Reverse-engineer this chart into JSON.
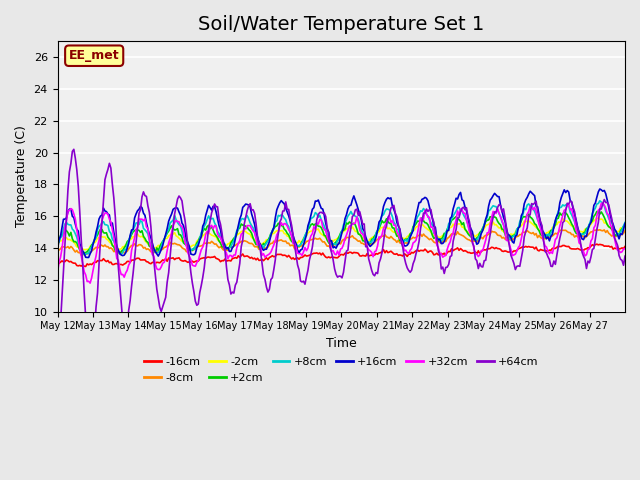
{
  "title": "Soil/Water Temperature Set 1",
  "xlabel": "Time",
  "ylabel": "Temperature (C)",
  "ylim": [
    10,
    27
  ],
  "n_days": 16,
  "x_tick_labels": [
    "May 12",
    "May 13",
    "May 14",
    "May 15",
    "May 16",
    "May 17",
    "May 18",
    "May 19",
    "May 20",
    "May 21",
    "May 22",
    "May 23",
    "May 24",
    "May 25",
    "May 26",
    "May 27"
  ],
  "legend_labels": [
    "-16cm",
    "-8cm",
    "-2cm",
    "+2cm",
    "+8cm",
    "+16cm",
    "+32cm",
    "+64cm"
  ],
  "legend_colors": [
    "#ff0000",
    "#ff8800",
    "#ffff00",
    "#00cc00",
    "#00cccc",
    "#0000cc",
    "#ff00ff",
    "#8800cc"
  ],
  "annotation_text": "EE_met",
  "annotation_color": "#8B0000",
  "annotation_bg": "#ffff99",
  "bg_color": "#e8e8e8",
  "plot_bg": "#f0f0f0",
  "title_fontsize": 14,
  "axis_fontsize": 9
}
